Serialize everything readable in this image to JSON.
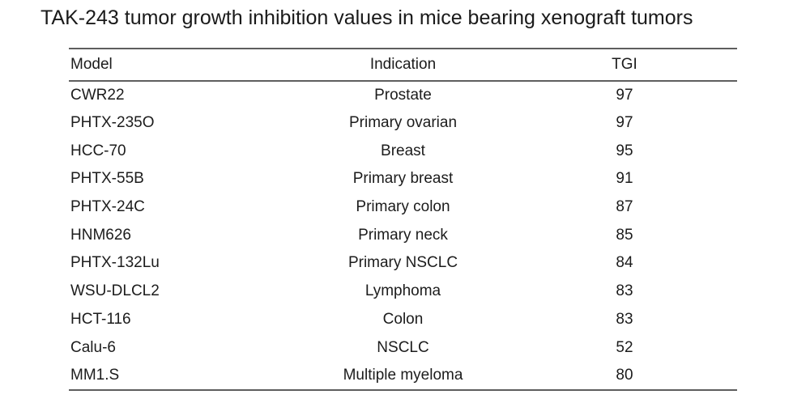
{
  "styles": {
    "background": "#ffffff",
    "text_color": "#1a1a1a",
    "rule_color": "#5e5e5e"
  },
  "chart_data": {
    "type": "table",
    "title": "TAK-243 tumor growth inhibition values in mice bearing xenograft tumors",
    "columns": [
      "Model",
      "Indication",
      "TGI"
    ],
    "rows": [
      {
        "model": "CWR22",
        "indication": "Prostate",
        "tgi": 97
      },
      {
        "model": "PHTX-235O",
        "indication": "Primary ovarian",
        "tgi": 97
      },
      {
        "model": "HCC-70",
        "indication": "Breast",
        "tgi": 95
      },
      {
        "model": "PHTX-55B",
        "indication": "Primary breast",
        "tgi": 91
      },
      {
        "model": "PHTX-24C",
        "indication": "Primary colon",
        "tgi": 87
      },
      {
        "model": "HNM626",
        "indication": "Primary neck",
        "tgi": 85
      },
      {
        "model": "PHTX-132Lu",
        "indication": "Primary NSCLC",
        "tgi": 84
      },
      {
        "model": "WSU-DLCL2",
        "indication": "Lymphoma",
        "tgi": 83
      },
      {
        "model": "HCT-116",
        "indication": "Colon",
        "tgi": 83
      },
      {
        "model": "Calu-6",
        "indication": "NSCLC",
        "tgi": 52
      },
      {
        "model": "MM1.S",
        "indication": "Multiple myeloma",
        "tgi": 80
      }
    ],
    "layout": {
      "column_alignments": [
        "left",
        "center",
        "center"
      ],
      "grid": "horizontal-rules-only"
    }
  }
}
